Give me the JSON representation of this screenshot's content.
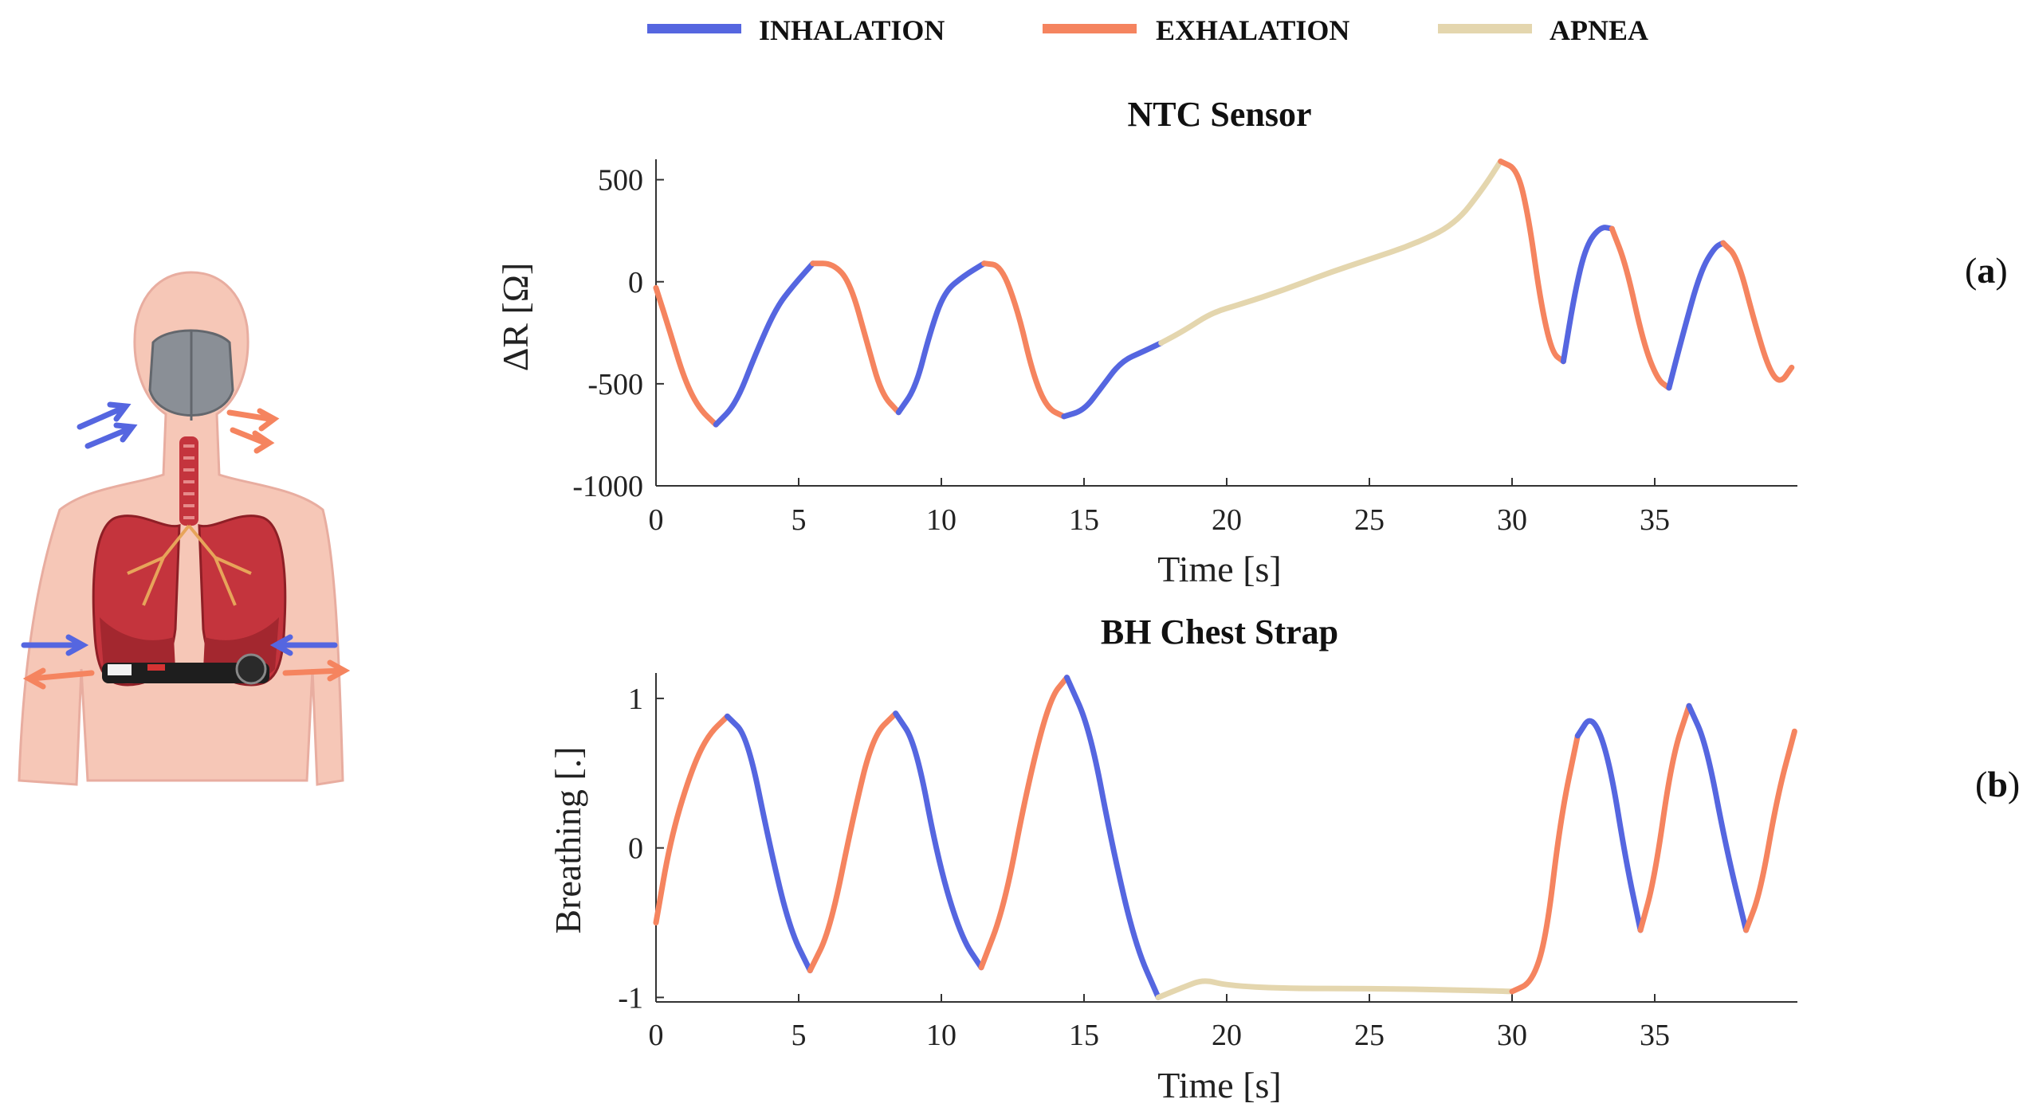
{
  "colors": {
    "inhalation": "#5566e0",
    "exhalation": "#f5845f",
    "apnea": "#e4d6ae",
    "axis": "#333333",
    "skin": "#f6c7b7",
    "lung": "#c4343d",
    "mask": "#8a8f96"
  },
  "legend": [
    {
      "key": "inhalation",
      "label": "INHALATION"
    },
    {
      "key": "exhalation",
      "label": "EXHALATION"
    },
    {
      "key": "apnea",
      "label": "APNEA"
    }
  ],
  "illustration": {
    "icons": [
      "human-torso-icon",
      "face-mask-icon",
      "lungs-icon",
      "chest-strap-icon",
      "airflow-arrow-icon"
    ]
  },
  "chart_data": [
    {
      "type": "line",
      "title": "NTC Sensor",
      "panel": "(a)",
      "xlabel": "Time [s]",
      "ylabel": "ΔR [Ω]",
      "xlim": [
        0,
        40
      ],
      "ylim": [
        -1000,
        600
      ],
      "xticks": [
        "0",
        "5",
        "10",
        "15",
        "20",
        "25",
        "30",
        "35"
      ],
      "yticks": [
        "500",
        "0",
        "-500",
        "-1000"
      ],
      "ytick_values": [
        500,
        0,
        -500,
        -1000
      ],
      "segments": [
        {
          "phase": "exhalation",
          "points": [
            [
              0,
              -30
            ],
            [
              0.5,
              -250
            ],
            [
              1,
              -480
            ],
            [
              1.5,
              -620
            ],
            [
              2.1,
              -700
            ]
          ]
        },
        {
          "phase": "inhalation",
          "points": [
            [
              2.1,
              -700
            ],
            [
              2.8,
              -600
            ],
            [
              3.5,
              -350
            ],
            [
              4.2,
              -130
            ],
            [
              4.8,
              -20
            ],
            [
              5.5,
              90
            ]
          ]
        },
        {
          "phase": "exhalation",
          "points": [
            [
              5.5,
              90
            ],
            [
              6.2,
              90
            ],
            [
              6.8,
              0
            ],
            [
              7.4,
              -300
            ],
            [
              7.9,
              -550
            ],
            [
              8.5,
              -640
            ]
          ]
        },
        {
          "phase": "inhalation",
          "points": [
            [
              8.5,
              -640
            ],
            [
              9.1,
              -520
            ],
            [
              9.6,
              -250
            ],
            [
              10.1,
              -50
            ],
            [
              10.8,
              30
            ],
            [
              11.5,
              90
            ]
          ]
        },
        {
          "phase": "exhalation",
          "points": [
            [
              11.5,
              90
            ],
            [
              12.1,
              80
            ],
            [
              12.7,
              -150
            ],
            [
              13.2,
              -450
            ],
            [
              13.7,
              -620
            ],
            [
              14.3,
              -660
            ]
          ]
        },
        {
          "phase": "inhalation",
          "points": [
            [
              14.3,
              -660
            ],
            [
              15,
              -630
            ],
            [
              15.6,
              -520
            ],
            [
              16.3,
              -390
            ],
            [
              17.1,
              -340
            ],
            [
              17.7,
              -300
            ]
          ]
        },
        {
          "phase": "apnea",
          "points": [
            [
              17.7,
              -300
            ],
            [
              18.5,
              -240
            ],
            [
              19.5,
              -150
            ],
            [
              20.5,
              -110
            ],
            [
              22,
              -40
            ],
            [
              23.5,
              40
            ],
            [
              25,
              110
            ],
            [
              26.5,
              180
            ],
            [
              28,
              280
            ],
            [
              29,
              460
            ],
            [
              29.6,
              590
            ]
          ]
        },
        {
          "phase": "exhalation",
          "points": [
            [
              29.6,
              590
            ],
            [
              30.2,
              550
            ],
            [
              30.6,
              300
            ],
            [
              31,
              -100
            ],
            [
              31.4,
              -350
            ],
            [
              31.8,
              -390
            ]
          ]
        },
        {
          "phase": "inhalation",
          "points": [
            [
              31.8,
              -390
            ],
            [
              32.2,
              -50
            ],
            [
              32.6,
              180
            ],
            [
              33.1,
              270
            ],
            [
              33.5,
              260
            ]
          ]
        },
        {
          "phase": "exhalation",
          "points": [
            [
              33.5,
              260
            ],
            [
              34,
              80
            ],
            [
              34.6,
              -300
            ],
            [
              35.1,
              -480
            ],
            [
              35.5,
              -520
            ]
          ]
        },
        {
          "phase": "inhalation",
          "points": [
            [
              35.5,
              -520
            ],
            [
              36,
              -250
            ],
            [
              36.6,
              50
            ],
            [
              37.1,
              170
            ],
            [
              37.4,
              190
            ]
          ]
        },
        {
          "phase": "exhalation",
          "points": [
            [
              37.4,
              190
            ],
            [
              37.9,
              120
            ],
            [
              38.5,
              -200
            ],
            [
              39,
              -430
            ],
            [
              39.4,
              -500
            ],
            [
              39.8,
              -420
            ]
          ]
        }
      ]
    },
    {
      "type": "line",
      "title": "BH Chest Strap",
      "panel": "(b)",
      "xlabel": "Time [s]",
      "ylabel": "Breathing [.]",
      "xlim": [
        0,
        40
      ],
      "ylim": [
        -1.03,
        1.17
      ],
      "xticks": [
        "0",
        "5",
        "10",
        "15",
        "20",
        "25",
        "30",
        "35"
      ],
      "yticks": [
        "1",
        "0",
        "-1"
      ],
      "ytick_values": [
        1,
        0,
        -1
      ],
      "segments": [
        {
          "phase": "exhalation",
          "points": [
            [
              0,
              -0.5
            ],
            [
              0.5,
              0.05
            ],
            [
              1.2,
              0.5
            ],
            [
              1.8,
              0.75
            ],
            [
              2.5,
              0.88
            ]
          ]
        },
        {
          "phase": "inhalation",
          "points": [
            [
              2.5,
              0.88
            ],
            [
              3.2,
              0.75
            ],
            [
              4,
              0.0
            ],
            [
              4.7,
              -0.55
            ],
            [
              5.4,
              -0.82
            ]
          ]
        },
        {
          "phase": "exhalation",
          "points": [
            [
              5.4,
              -0.82
            ],
            [
              6.1,
              -0.55
            ],
            [
              6.9,
              0.2
            ],
            [
              7.6,
              0.75
            ],
            [
              8.4,
              0.9
            ]
          ]
        },
        {
          "phase": "inhalation",
          "points": [
            [
              8.4,
              0.9
            ],
            [
              9.1,
              0.7
            ],
            [
              9.9,
              -0.1
            ],
            [
              10.7,
              -0.6
            ],
            [
              11.4,
              -0.8
            ]
          ]
        },
        {
          "phase": "exhalation",
          "points": [
            [
              11.4,
              -0.8
            ],
            [
              12.2,
              -0.4
            ],
            [
              13,
              0.4
            ],
            [
              13.8,
              1.0
            ],
            [
              14.4,
              1.14
            ]
          ]
        },
        {
          "phase": "inhalation",
          "points": [
            [
              14.4,
              1.14
            ],
            [
              15.2,
              0.8
            ],
            [
              16,
              0.0
            ],
            [
              16.8,
              -0.65
            ],
            [
              17.6,
              -1.0
            ]
          ]
        },
        {
          "phase": "apnea",
          "points": [
            [
              17.6,
              -1.0
            ],
            [
              18.5,
              -0.93
            ],
            [
              19.2,
              -0.88
            ],
            [
              20,
              -0.92
            ],
            [
              22,
              -0.94
            ],
            [
              25,
              -0.94
            ],
            [
              28,
              -0.95
            ],
            [
              30,
              -0.96
            ]
          ]
        },
        {
          "phase": "exhalation",
          "points": [
            [
              30,
              -0.96
            ],
            [
              30.7,
              -0.9
            ],
            [
              31.2,
              -0.6
            ],
            [
              31.7,
              0.2
            ],
            [
              32.3,
              0.75
            ]
          ]
        },
        {
          "phase": "inhalation",
          "points": [
            [
              32.3,
              0.75
            ],
            [
              32.8,
              0.9
            ],
            [
              33.4,
              0.6
            ],
            [
              34,
              -0.1
            ],
            [
              34.5,
              -0.55
            ]
          ]
        },
        {
          "phase": "exhalation",
          "points": [
            [
              34.5,
              -0.55
            ],
            [
              35,
              -0.2
            ],
            [
              35.6,
              0.6
            ],
            [
              36.2,
              0.95
            ]
          ]
        },
        {
          "phase": "inhalation",
          "points": [
            [
              36.2,
              0.95
            ],
            [
              36.8,
              0.7
            ],
            [
              37.5,
              0.0
            ],
            [
              38.2,
              -0.55
            ]
          ]
        },
        {
          "phase": "exhalation",
          "points": [
            [
              38.2,
              -0.55
            ],
            [
              38.7,
              -0.3
            ],
            [
              39.3,
              0.35
            ],
            [
              39.9,
              0.78
            ]
          ]
        }
      ]
    }
  ]
}
